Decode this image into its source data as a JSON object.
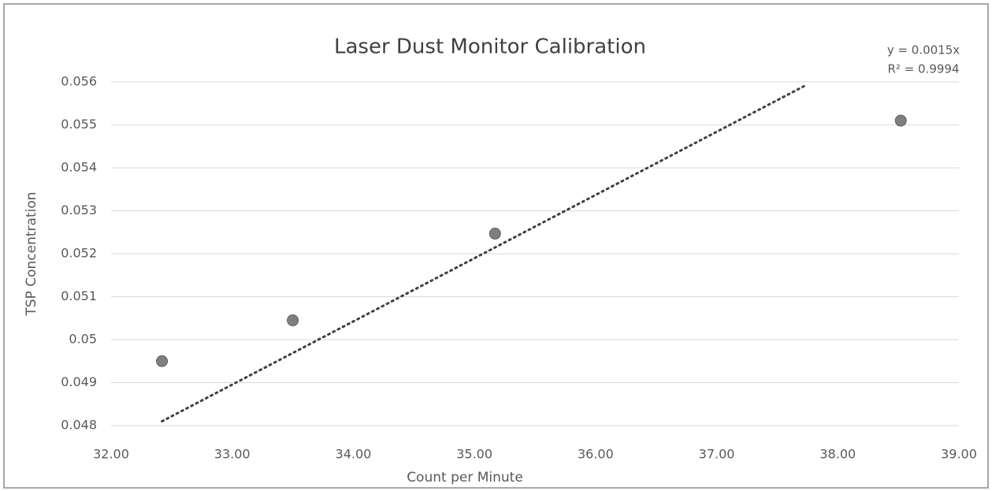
{
  "chart_data": {
    "type": "scatter",
    "title": "Laser Dust Monitor Calibration",
    "x_label": "Count per Minute",
    "y_label": "TSP Concentration",
    "annotations": [
      "y = 0.0015x",
      "R² = 0.9994"
    ],
    "series": [
      {
        "color": "#7f7f7f",
        "x": [
          32.42,
          33.5,
          35.17,
          38.52
        ],
        "values": [
          0.0495,
          0.05045,
          0.05247,
          0.0551
        ]
      }
    ],
    "trendline": {
      "color": "#404040",
      "x": [
        32.42,
        37.72
      ],
      "values": [
        0.0481,
        0.0559
      ]
    },
    "xlim": [
      32,
      39
    ],
    "xticks": [
      {
        "value": 32,
        "label": "32.00"
      },
      {
        "value": 33,
        "label": "33.00"
      },
      {
        "value": 34,
        "label": "34.00"
      },
      {
        "value": 35,
        "label": "35.00"
      },
      {
        "value": 36,
        "label": "36.00"
      },
      {
        "value": 37,
        "label": "37.00"
      },
      {
        "value": 38,
        "label": "38.00"
      },
      {
        "value": 39,
        "label": "39.00"
      }
    ],
    "ylim": [
      0.048,
      0.056
    ],
    "yticks": [
      0.048,
      0.049,
      0.05,
      0.051,
      0.052,
      0.053,
      0.054,
      0.055,
      0.056
    ],
    "grid": true
  }
}
